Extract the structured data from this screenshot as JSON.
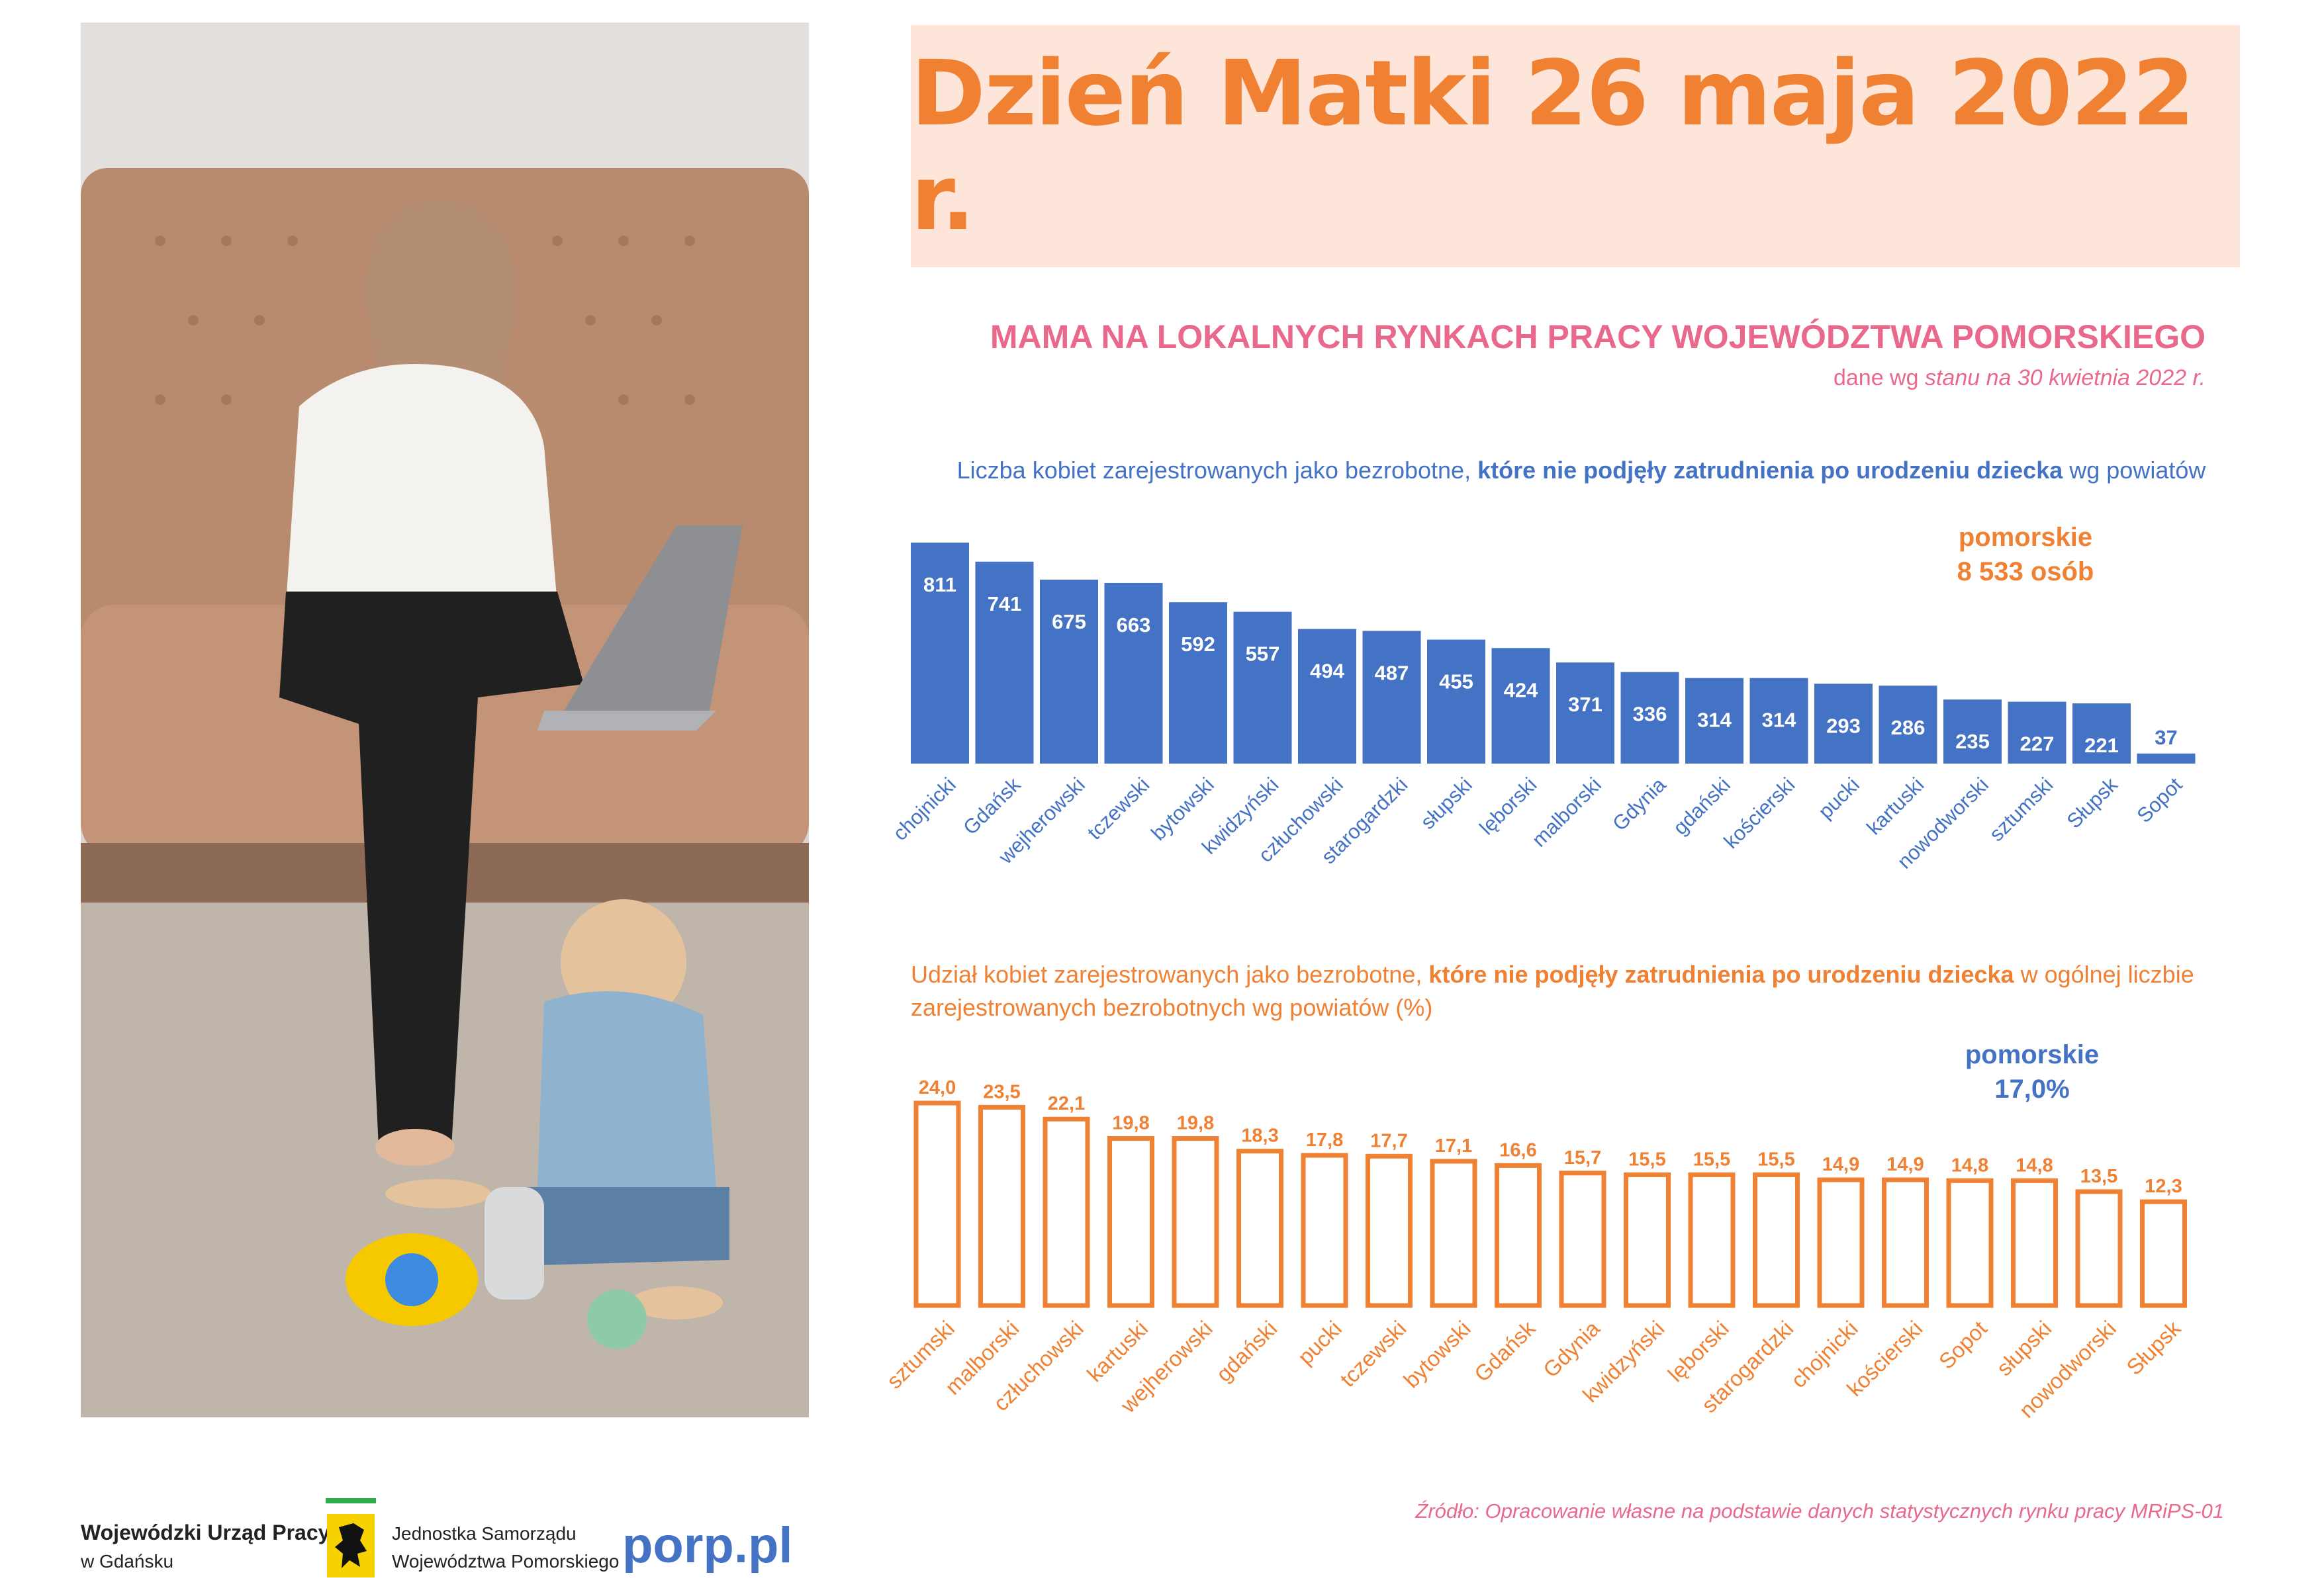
{
  "header": {
    "title": "Dzień Matki 26 maja 2022 r.",
    "subtitle": "MAMA NA LOKALNYCH RYNKACH PRACY WOJEWÓDZTWA POMORSKIEGO",
    "dateline_prefix": "dane wg ",
    "dateline_italic": "stanu na 30 kwietnia 2022 r."
  },
  "chart1_label": {
    "prefix": "Liczba kobiet zarejestrowanych jako bezrobotne, ",
    "bold": "które nie podjęły zatrudnienia po urodzeniu dziecka",
    "suffix": " wg powiatów"
  },
  "chart2_label": {
    "prefix": "Udział kobiet zarejestrowanych jako bezrobotne, ",
    "bold": "które nie podjęły zatrudnienia po urodzeniu dziecka",
    "suffix": " w ogólnej liczbie zarejestrowanych bezrobotnych wg powiatów  (%)"
  },
  "totals": {
    "chart1_line1": "pomorskie",
    "chart1_line2": "8 533 osób",
    "chart2_line1": "pomorskie",
    "chart2_line2": "17,0%"
  },
  "chart_data": [
    {
      "type": "bar",
      "color": "#4472c4",
      "categories": [
        "chojnicki",
        "Gdańsk",
        "wejherowski",
        "tczewski",
        "bytowski",
        "kwidzyński",
        "człuchowski",
        "starogardzki",
        "słupski",
        "lęborski",
        "malborski",
        "Gdynia",
        "gdański",
        "kościerski",
        "pucki",
        "kartuski",
        "nowodworski",
        "sztumski",
        "Słupsk",
        "Sopot"
      ],
      "values": [
        811,
        741,
        675,
        663,
        592,
        557,
        494,
        487,
        455,
        424,
        371,
        336,
        314,
        314,
        293,
        286,
        235,
        227,
        221,
        37
      ],
      "data_labels": [
        "811",
        "741",
        "675",
        "663",
        "592",
        "557",
        "494",
        "487",
        "455",
        "424",
        "371",
        "336",
        "314",
        "314",
        "293",
        "286",
        "235",
        "227",
        "221",
        "37"
      ]
    },
    {
      "type": "bar",
      "color": "#f08032",
      "style": "outline",
      "categories": [
        "sztumski",
        "malborski",
        "człuchowski",
        "kartuski",
        "wejherowski",
        "gdański",
        "pucki",
        "tczewski",
        "bytowski",
        "Gdańsk",
        "Gdynia",
        "kwidzyński",
        "lęborski",
        "starogardzki",
        "chojnicki",
        "kościerski",
        "Sopot",
        "słupski",
        "nowodworski",
        "Słupsk"
      ],
      "values": [
        24.0,
        23.5,
        22.1,
        19.8,
        19.8,
        18.3,
        17.8,
        17.7,
        17.1,
        16.6,
        15.7,
        15.5,
        15.5,
        15.5,
        14.9,
        14.9,
        14.8,
        14.8,
        13.5,
        12.3
      ],
      "data_labels": [
        "24,0",
        "23,5",
        "22,1",
        "19,8",
        "19,8",
        "18,3",
        "17,8",
        "17,7",
        "17,1",
        "16,6",
        "15,7",
        "15,5",
        "15,5",
        "15,5",
        "14,9",
        "14,9",
        "14,8",
        "14,8",
        "13,5",
        "12,3"
      ]
    }
  ],
  "source": "Źródło: Opracowanie własne na podstawie danych statystycznych rynku pracy MRiPS-01",
  "footer": {
    "org_name": "Wojewódzki Urząd Pracy",
    "org_sub": "w Gdańsku",
    "jst_line1": "Jednostka Samorządu",
    "jst_line2": "Województwa Pomorskiego",
    "site": "porp.pl"
  }
}
